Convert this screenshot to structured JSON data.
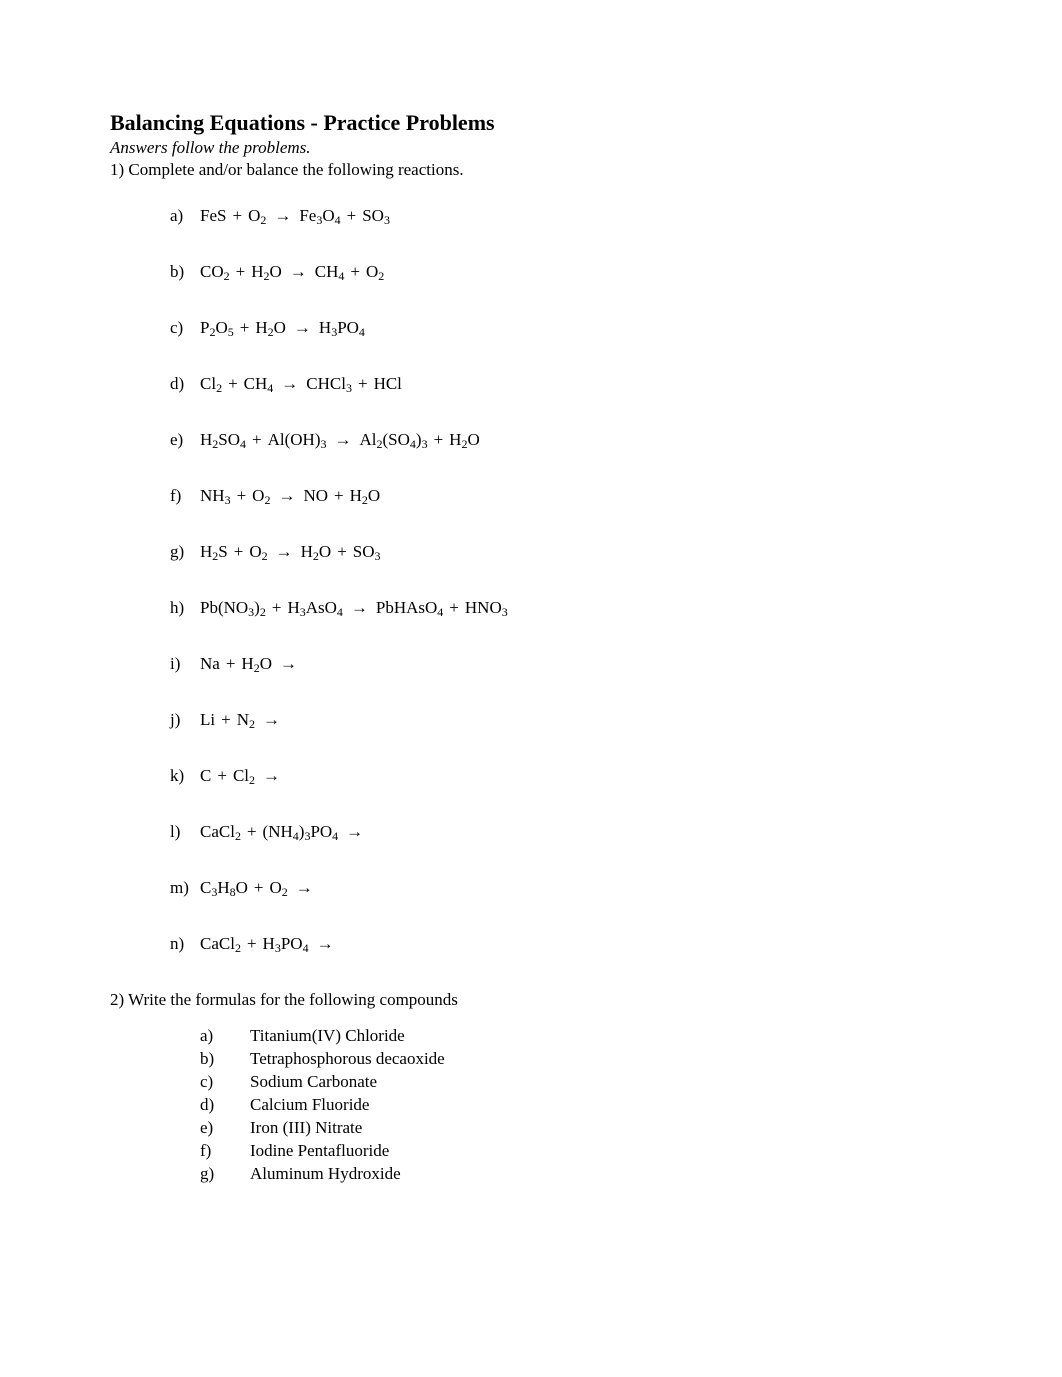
{
  "title": "Balancing Equations - Practice Problems",
  "subtitle": "Answers follow the problems.",
  "q1_instruction": "1)  Complete and/or balance the following reactions.",
  "equations": [
    {
      "label": "a)",
      "tokens": [
        {
          "t": "txt",
          "v": "FeS"
        },
        {
          "t": "op",
          "v": "+"
        },
        {
          "t": "chem",
          "base": "O",
          "sub": "2"
        },
        {
          "t": "arrow"
        },
        {
          "t": "chem",
          "base": "Fe",
          "sub": "3"
        },
        {
          "t": "chem",
          "base": "O",
          "sub": "4"
        },
        {
          "t": "op",
          "v": "+"
        },
        {
          "t": "chem",
          "base": "SO",
          "sub": "3"
        }
      ]
    },
    {
      "label": "b)",
      "tokens": [
        {
          "t": "chem",
          "base": "CO",
          "sub": "2"
        },
        {
          "t": "op",
          "v": "+"
        },
        {
          "t": "chem",
          "base": "H",
          "sub": "2"
        },
        {
          "t": "txt",
          "v": "O"
        },
        {
          "t": "arrow"
        },
        {
          "t": "chem",
          "base": "CH",
          "sub": "4"
        },
        {
          "t": "op",
          "v": "+"
        },
        {
          "t": "chem",
          "base": "O",
          "sub": "2"
        }
      ]
    },
    {
      "label": "c)",
      "tokens": [
        {
          "t": "chem",
          "base": "P",
          "sub": "2"
        },
        {
          "t": "chem",
          "base": "O",
          "sub": "5"
        },
        {
          "t": "op",
          "v": "+"
        },
        {
          "t": "chem",
          "base": "H",
          "sub": "2"
        },
        {
          "t": "txt",
          "v": "O"
        },
        {
          "t": "arrow"
        },
        {
          "t": "chem",
          "base": "H",
          "sub": "3"
        },
        {
          "t": "chem",
          "base": "PO",
          "sub": "4"
        }
      ]
    },
    {
      "label": "d)",
      "tokens": [
        {
          "t": "chem",
          "base": "Cl",
          "sub": "2"
        },
        {
          "t": "op",
          "v": "+"
        },
        {
          "t": "chem",
          "base": "CH",
          "sub": "4"
        },
        {
          "t": "arrow"
        },
        {
          "t": "chem",
          "base": "CHCl",
          "sub": "3"
        },
        {
          "t": "op",
          "v": "+"
        },
        {
          "t": "txt",
          "v": "HCl"
        }
      ]
    },
    {
      "label": "e)",
      "tokens": [
        {
          "t": "chem",
          "base": "H",
          "sub": "2"
        },
        {
          "t": "chem",
          "base": "SO",
          "sub": "4"
        },
        {
          "t": "op",
          "v": "+"
        },
        {
          "t": "chem",
          "base": "Al(OH)",
          "sub": "3"
        },
        {
          "t": "arrow"
        },
        {
          "t": "chem",
          "base": "Al",
          "sub": "2"
        },
        {
          "t": "chem",
          "base": "(SO",
          "sub": "4"
        },
        {
          "t": "chem",
          "base": ")",
          "sub": "3"
        },
        {
          "t": "op",
          "v": "+"
        },
        {
          "t": "chem",
          "base": "H",
          "sub": "2"
        },
        {
          "t": "txt",
          "v": "O"
        }
      ]
    },
    {
      "label": "f)",
      "tokens": [
        {
          "t": "chem",
          "base": "NH",
          "sub": "3"
        },
        {
          "t": "op",
          "v": "+"
        },
        {
          "t": "chem",
          "base": "O",
          "sub": "2"
        },
        {
          "t": "arrow"
        },
        {
          "t": "txt",
          "v": "NO"
        },
        {
          "t": "op",
          "v": "+"
        },
        {
          "t": "chem",
          "base": "H",
          "sub": "2"
        },
        {
          "t": "txt",
          "v": "O"
        }
      ]
    },
    {
      "label": "g)",
      "tokens": [
        {
          "t": "chem",
          "base": "H",
          "sub": "2"
        },
        {
          "t": "txt",
          "v": "S"
        },
        {
          "t": "op",
          "v": "+"
        },
        {
          "t": "chem",
          "base": "O",
          "sub": "2"
        },
        {
          "t": "arrow"
        },
        {
          "t": "chem",
          "base": "H",
          "sub": "2"
        },
        {
          "t": "txt",
          "v": "O"
        },
        {
          "t": "op",
          "v": "+"
        },
        {
          "t": "chem",
          "base": "SO",
          "sub": "3"
        }
      ]
    },
    {
      "label": "h)",
      "tokens": [
        {
          "t": "chem",
          "base": "Pb(NO",
          "sub": "3"
        },
        {
          "t": "chem",
          "base": ")",
          "sub": "2"
        },
        {
          "t": "op",
          "v": "+"
        },
        {
          "t": "chem",
          "base": "H",
          "sub": "3"
        },
        {
          "t": "chem",
          "base": "AsO",
          "sub": "4"
        },
        {
          "t": "arrow"
        },
        {
          "t": "chem",
          "base": "PbHAsO",
          "sub": "4"
        },
        {
          "t": "op",
          "v": "+"
        },
        {
          "t": "chem",
          "base": "HNO",
          "sub": "3"
        }
      ]
    },
    {
      "label": "i)",
      "tokens": [
        {
          "t": "txt",
          "v": "Na"
        },
        {
          "t": "op",
          "v": "+"
        },
        {
          "t": "chem",
          "base": "H",
          "sub": "2"
        },
        {
          "t": "txt",
          "v": "O"
        },
        {
          "t": "arrow"
        }
      ]
    },
    {
      "label": "j)",
      "tokens": [
        {
          "t": "txt",
          "v": "Li"
        },
        {
          "t": "op",
          "v": "+"
        },
        {
          "t": "chem",
          "base": "N",
          "sub": "2"
        },
        {
          "t": "arrow"
        }
      ]
    },
    {
      "label": "k)",
      "tokens": [
        {
          "t": "txt",
          "v": "C"
        },
        {
          "t": "op",
          "v": "+"
        },
        {
          "t": "chem",
          "base": "Cl",
          "sub": "2"
        },
        {
          "t": "arrow"
        }
      ]
    },
    {
      "label": "l)",
      "tokens": [
        {
          "t": "chem",
          "base": "CaCl",
          "sub": "2"
        },
        {
          "t": "op",
          "v": "+"
        },
        {
          "t": "chem",
          "base": "(NH",
          "sub": "4"
        },
        {
          "t": "chem",
          "base": ")",
          "sub": "3"
        },
        {
          "t": "chem",
          "base": "PO",
          "sub": "4"
        },
        {
          "t": "arrow"
        }
      ]
    },
    {
      "label": "m)",
      "tokens": [
        {
          "t": "chem",
          "base": "C",
          "sub": "3"
        },
        {
          "t": "chem",
          "base": "H",
          "sub": "8"
        },
        {
          "t": "txt",
          "v": "O"
        },
        {
          "t": "op",
          "v": "+"
        },
        {
          "t": "chem",
          "base": "O",
          "sub": "2"
        },
        {
          "t": "arrow"
        }
      ]
    },
    {
      "label": "n)",
      "tokens": [
        {
          "t": "chem",
          "base": "CaCl",
          "sub": "2"
        },
        {
          "t": "op",
          "v": "+"
        },
        {
          "t": "chem",
          "base": "H",
          "sub": "3"
        },
        {
          "t": "chem",
          "base": "PO",
          "sub": "4"
        },
        {
          "t": "arrow"
        }
      ]
    }
  ],
  "q2_instruction": "2) Write the formulas for the following compounds",
  "compounds": [
    {
      "label": "a)",
      "name": "Titanium(IV) Chloride"
    },
    {
      "label": "b)",
      "name": "Tetraphosphorous decaoxide"
    },
    {
      "label": "c)",
      "name": "Sodium Carbonate"
    },
    {
      "label": "d)",
      "name": "Calcium Fluoride"
    },
    {
      "label": "e)",
      "name": "Iron (III) Nitrate"
    },
    {
      "label": "f)",
      "name": "Iodine Pentafluoride"
    },
    {
      "label": "g)",
      "name": "Aluminum Hydroxide"
    }
  ],
  "arrow_glyph": "→",
  "colors": {
    "text": "#000000",
    "background": "#ffffff"
  }
}
